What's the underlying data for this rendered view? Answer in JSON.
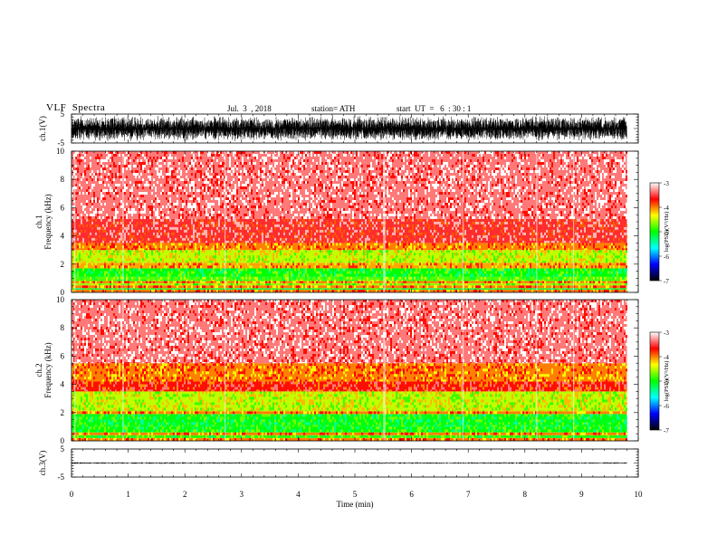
{
  "header": {
    "title": "VLF  Spectra",
    "date": "Jul.  3  , 2018",
    "station": "station= ATH",
    "start": "start  UT  =   6  : 30 : 1"
  },
  "chart_data": [
    {
      "type": "line",
      "name": "ch1-waveform",
      "ylabel": "ch.1(V)",
      "yticks": [
        "5",
        "-5"
      ],
      "ylim": [
        -5,
        5
      ],
      "xlim": [
        0,
        10
      ],
      "data_end_min": 9.8,
      "amplitude_V": 4.5
    },
    {
      "type": "heatmap",
      "name": "ch1-spectrogram",
      "ylabel": "ch.1\nFrequency  (kHz)",
      "yticks": [
        "0",
        "2",
        "4",
        "6",
        "8",
        "10"
      ],
      "ylim": [
        0,
        10
      ],
      "xlim": [
        0,
        10
      ],
      "data_end_min": 9.8,
      "bands": [
        {
          "from_khz": 0,
          "to_khz": 0.2,
          "level": -4
        },
        {
          "from_khz": 0.2,
          "to_khz": 0.3,
          "level": -5.1
        },
        {
          "from_khz": 0.3,
          "to_khz": 0.5,
          "level": -4
        },
        {
          "from_khz": 0.5,
          "to_khz": 0.65,
          "level": -4.6
        },
        {
          "from_khz": 0.65,
          "to_khz": 0.8,
          "level": -4
        },
        {
          "from_khz": 0.8,
          "to_khz": 1.1,
          "level": -4.8
        },
        {
          "from_khz": 1.1,
          "to_khz": 1.7,
          "level": -5.0
        },
        {
          "from_khz": 1.7,
          "to_khz": 2.1,
          "level": -4.1
        },
        {
          "from_khz": 2.1,
          "to_khz": 3.0,
          "level": -4.5
        },
        {
          "from_khz": 3.0,
          "to_khz": 3.5,
          "level": -4.0
        },
        {
          "from_khz": 3.5,
          "to_khz": 5.2,
          "level": -3.55
        },
        {
          "from_khz": 5.2,
          "to_khz": 10.0,
          "level": -3.35
        }
      ]
    },
    {
      "type": "heatmap",
      "name": "ch2-spectrogram",
      "ylabel": "ch.2\nFrequency  (kHz)",
      "yticks": [
        "0",
        "2",
        "4",
        "6",
        "8",
        "10"
      ],
      "ylim": [
        0,
        10
      ],
      "xlim": [
        0,
        10
      ],
      "data_end_min": 9.8,
      "bands": [
        {
          "from_khz": 0,
          "to_khz": 0.2,
          "level": -4
        },
        {
          "from_khz": 0.2,
          "to_khz": 0.4,
          "level": -4.9
        },
        {
          "from_khz": 0.4,
          "to_khz": 0.6,
          "level": -4
        },
        {
          "from_khz": 0.6,
          "to_khz": 1.0,
          "level": -5.0
        },
        {
          "from_khz": 1.0,
          "to_khz": 1.9,
          "level": -5.05
        },
        {
          "from_khz": 1.9,
          "to_khz": 2.1,
          "level": -4.0
        },
        {
          "from_khz": 2.1,
          "to_khz": 3.5,
          "level": -4.5
        },
        {
          "from_khz": 3.5,
          "to_khz": 4.2,
          "level": -3.7
        },
        {
          "from_khz": 4.2,
          "to_khz": 5.5,
          "level": -4.0
        },
        {
          "from_khz": 5.5,
          "to_khz": 10.0,
          "level": -3.35
        }
      ]
    },
    {
      "type": "line",
      "name": "ch3-waveform",
      "ylabel": "ch.3(V)",
      "yticks": [
        "5",
        "-5"
      ],
      "ylim": [
        -5,
        5
      ],
      "xlim": [
        0,
        10
      ],
      "xlabel": "Time  (min)",
      "xticks": [
        "0",
        "1",
        "2",
        "3",
        "4",
        "5",
        "6",
        "7",
        "8",
        "9",
        "10"
      ],
      "data_end_min": 9.8,
      "amplitude_V": 0.3
    }
  ],
  "colorbars": [
    {
      "label": "log(PSD)(V²/Hz)",
      "ticks": [
        "-3",
        "-4",
        "-5",
        "-6",
        "-7"
      ],
      "range": [
        -7,
        -3
      ]
    },
    {
      "label": "log(PSD)(V²/Hz)",
      "ticks": [
        "-3",
        "-4",
        "-5",
        "-6",
        "-7"
      ],
      "range": [
        -7,
        -3
      ]
    }
  ],
  "colors": {
    "stops": [
      "#000000",
      "#0000ff",
      "#00ffff",
      "#00ff00",
      "#ffff00",
      "#ff0000",
      "#ffffff"
    ]
  }
}
